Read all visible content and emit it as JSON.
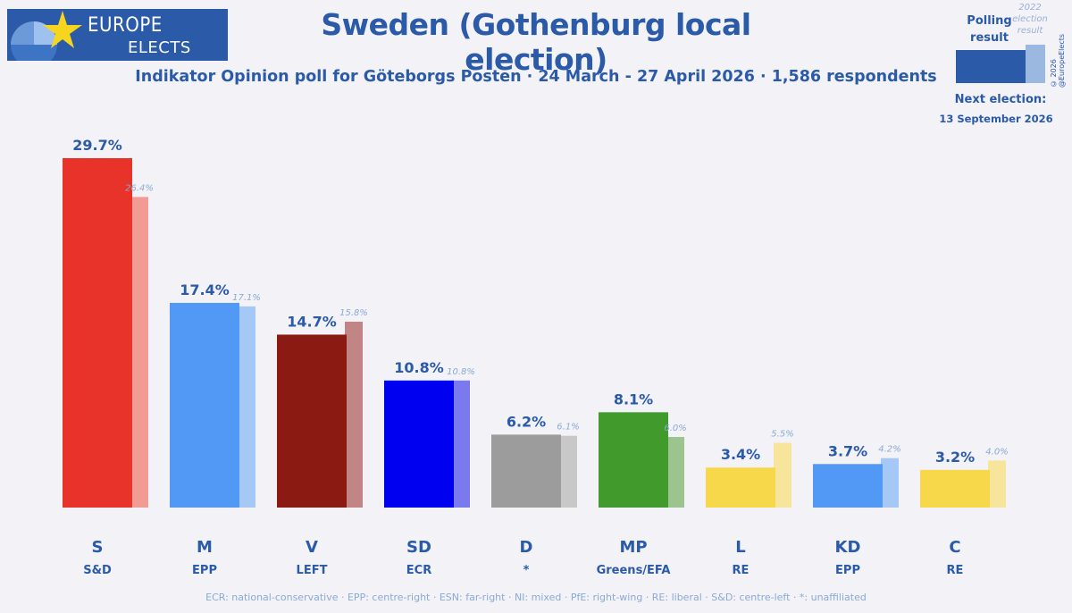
{
  "brand": {
    "line1": "EUROPE",
    "line2": "ELECTS"
  },
  "title": "Sweden (Gothenburg local election)",
  "subtitle": "Indikator Opinion poll for Göteborgs Posten · 24 March - 27 April 2026 · 1,586 respondents",
  "legend": {
    "polling_label": "Polling result",
    "previous_label": "2022 election result",
    "copyright": "© 2026 @EuropeElects"
  },
  "next_election": {
    "label": "Next election:",
    "date": "13 September 2026"
  },
  "footnote": "ECR: national-conservative · EPP: centre-right · ESN: far-right · NI: mixed · PfE: right-wing · RE: liberal · S&D: centre-left · *: unaffiliated",
  "colors": {
    "brand": "#2a5aa8",
    "background": "#f2f2f7"
  },
  "chart_data": {
    "type": "bar",
    "categories": [
      "S",
      "M",
      "V",
      "SD",
      "D",
      "MP",
      "L",
      "KD",
      "C"
    ],
    "groups": [
      "S&D",
      "EPP",
      "LEFT",
      "ECR",
      "*",
      "Greens/EFA",
      "RE",
      "EPP",
      "RE"
    ],
    "series": [
      {
        "name": "Polling result",
        "values": [
          29.7,
          17.4,
          14.7,
          10.8,
          6.2,
          8.1,
          3.4,
          3.7,
          3.2
        ],
        "labels": [
          "29.7%",
          "17.4%",
          "14.7%",
          "10.8%",
          "6.2%",
          "8.1%",
          "3.4%",
          "3.7%",
          "3.2%"
        ]
      },
      {
        "name": "2022 election result",
        "values": [
          26.4,
          17.1,
          15.8,
          10.8,
          6.1,
          6.0,
          5.5,
          4.2,
          4.0
        ],
        "labels": [
          "26.4%",
          "17.1%",
          "15.8%",
          "10.8%",
          "6.1%",
          "6.0%",
          "5.5%",
          "4.2%",
          "4.0%"
        ]
      }
    ],
    "colors": [
      "#e8332a",
      "#5199f5",
      "#8b1a12",
      "#0000f0",
      "#9c9c9c",
      "#419a2c",
      "#f7d84a",
      "#5199f5",
      "#f7d84a"
    ],
    "prev_colors": [
      "#f29a94",
      "#a6c8f7",
      "#c08584",
      "#7a7aee",
      "#c8c8c8",
      "#9cc48f",
      "#f7e59c",
      "#a6c8f7",
      "#f7e59c"
    ],
    "ylim": [
      0,
      30
    ],
    "grid": false,
    "legend_position": "top-right"
  }
}
